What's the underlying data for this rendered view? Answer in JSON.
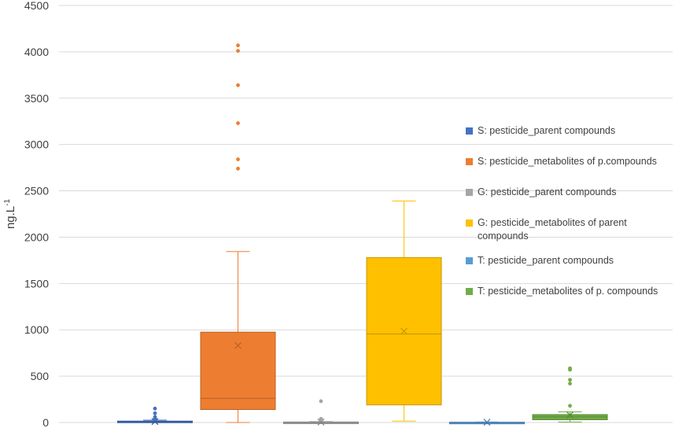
{
  "chart_data": {
    "type": "box",
    "ylabel_main": "ng.L",
    "ylabel_sup": "-1",
    "ylim": [
      0,
      4500
    ],
    "yticks": [
      0,
      500,
      1000,
      1500,
      2000,
      2500,
      3000,
      3500,
      4000,
      4500
    ],
    "grid": true,
    "legend_position": "right",
    "series": [
      {
        "name": "S: pesticide_parent compounds",
        "color": "#4472C4",
        "min": 0,
        "q1": 3,
        "median": 8,
        "q3": 15,
        "max": 25,
        "mean": 10,
        "outliers": [
          35,
          45,
          60,
          100,
          150
        ]
      },
      {
        "name": "S: pesticide_metabolites of p.compounds",
        "color": "#ED7D31",
        "min": 0,
        "q1": 140,
        "median": 260,
        "q3": 975,
        "max": 1845,
        "mean": 830,
        "outliers": [
          2740,
          2840,
          3230,
          3640,
          4010,
          4070
        ]
      },
      {
        "name": "G: pesticide_parent compounds",
        "color": "#A5A5A5",
        "min": 0,
        "q1": 0,
        "median": 2,
        "q3": 5,
        "max": 10,
        "mean": 5,
        "outliers": [
          30,
          40,
          230
        ]
      },
      {
        "name": "G: pesticide_metabolites of parent compounds",
        "color": "#FFC000",
        "min": 15,
        "q1": 190,
        "median": 955,
        "q3": 1780,
        "max": 2390,
        "mean": 985,
        "outliers": []
      },
      {
        "name": "T: pesticide_parent compounds",
        "color": "#5B9BD5",
        "min": 0,
        "q1": 0,
        "median": 1,
        "q3": 3,
        "max": 5,
        "mean": 3,
        "outliers": []
      },
      {
        "name": "T: pesticide_metabolites of p. compounds",
        "color": "#70AD47",
        "min": 5,
        "q1": 30,
        "median": 60,
        "q3": 85,
        "max": 115,
        "mean": 80,
        "outliers": [
          180,
          420,
          460,
          570,
          585
        ]
      }
    ]
  }
}
